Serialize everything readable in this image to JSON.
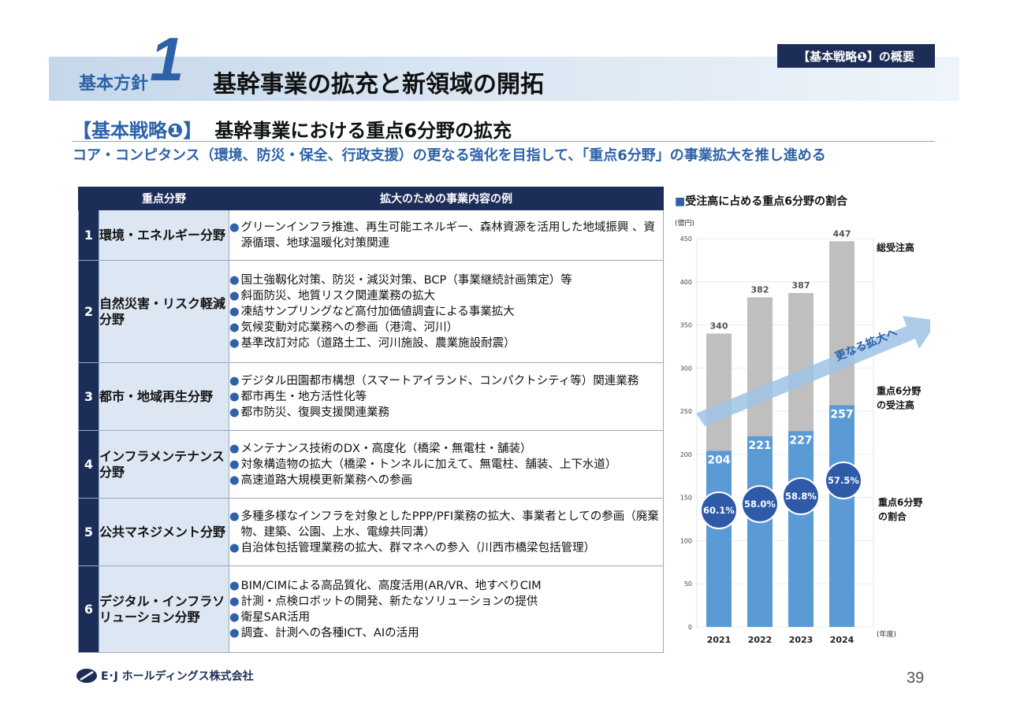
{
  "header": {
    "label": "基本方針",
    "number": "1",
    "title": "基幹事業の拡充と新領域の開拓",
    "tag": "【基本戦略❶】の概要"
  },
  "strategy": {
    "bracket": "【基本戦略❶】",
    "title": "基幹事業における重点6分野の拡充",
    "subtitle": "コア・コンピタンス（環境、防災・保全、行政支援）の更なる強化を目指して、「重点6分野」の事業拡大を推し進める"
  },
  "table": {
    "headers": [
      "重点分野",
      "拡大のための事業内容の例"
    ],
    "rows": [
      {
        "num": "1",
        "field": "環境・エネルギー分野",
        "items": [
          "グリーンインフラ推進、再生可能エネルギー、森林資源を活用した地域振興 、資源循環、地球温暖化対策関連"
        ]
      },
      {
        "num": "2",
        "field": "自然災害・リスク軽減分野",
        "items": [
          "国土強靱化対策、防災・減災対策、BCP（事業継続計画策定）等",
          "斜面防災、地質リスク関連業務の拡大",
          "凍結サンプリングなど高付加価値調査による事業拡大",
          "気候変動対応業務への参画（港湾、河川）",
          "基準改訂対応（道路土工、河川施設、農業施設耐震）"
        ]
      },
      {
        "num": "3",
        "field": "都市・地域再生分野",
        "items": [
          "デジタル田園都市構想（スマートアイランド、コンパクトシティ等）関連業務",
          "都市再生・地方活性化等",
          "都市防災、復興支援関連業務"
        ]
      },
      {
        "num": "4",
        "field": "インフラメンテナンス分野",
        "items": [
          "メンテナンス技術のDX・高度化（橋梁・無電柱・舗装）",
          "対象構造物の拡大（橋梁・トンネルに加えて、無電柱、舗装、上下水道）",
          "高速道路大規模更新業務への参画"
        ]
      },
      {
        "num": "5",
        "field": "公共マネジメント分野",
        "items": [
          "多種多様なインフラを対象としたPPP/PFI業務の拡大、事業者としての参画（廃棄物、建築、公園、上水、電線共同溝）",
          "自治体包括管理業務の拡大、群マネへの参入（川西市橋梁包括管理）"
        ]
      },
      {
        "num": "6",
        "field": "デジタル・インフラソリューション分野",
        "items": [
          "BIM/CIMによる高品質化、高度活用(AR/VR、地すべりCIM",
          "計測・点検ロボットの開発、新たなソリューションの提供",
          "衛星SAR活用",
          "調査、計測への各種ICT、AIの活用"
        ]
      }
    ]
  },
  "chart_title": "受注高に占める重点6分野の割合",
  "chart_data": {
    "type": "bar",
    "title": "受注高に占める重点6分野の割合",
    "unit_label": "(億円)",
    "x_unit_label": "(年度)",
    "categories": [
      "2021",
      "2022",
      "2023",
      "2024"
    ],
    "series": [
      {
        "name": "総受注高",
        "values": [
          340,
          382,
          387,
          447
        ],
        "color": "#bfbfbf"
      },
      {
        "name": "重点6分野の受注高",
        "values": [
          204,
          221,
          227,
          257
        ],
        "color": "#5b9bd5"
      }
    ],
    "ratios": [
      "60.1%",
      "58.0%",
      "58.8%",
      "57.5%"
    ],
    "ratio_label": "重点6分野の割合",
    "ylim": [
      0,
      450
    ],
    "yticks": [
      0,
      50,
      100,
      150,
      200,
      250,
      300,
      350,
      400,
      450
    ],
    "annotation": "更なる拡大へ",
    "grid": true
  },
  "footer": {
    "company": "E･J ホールディングス株式会社",
    "page": "39"
  }
}
